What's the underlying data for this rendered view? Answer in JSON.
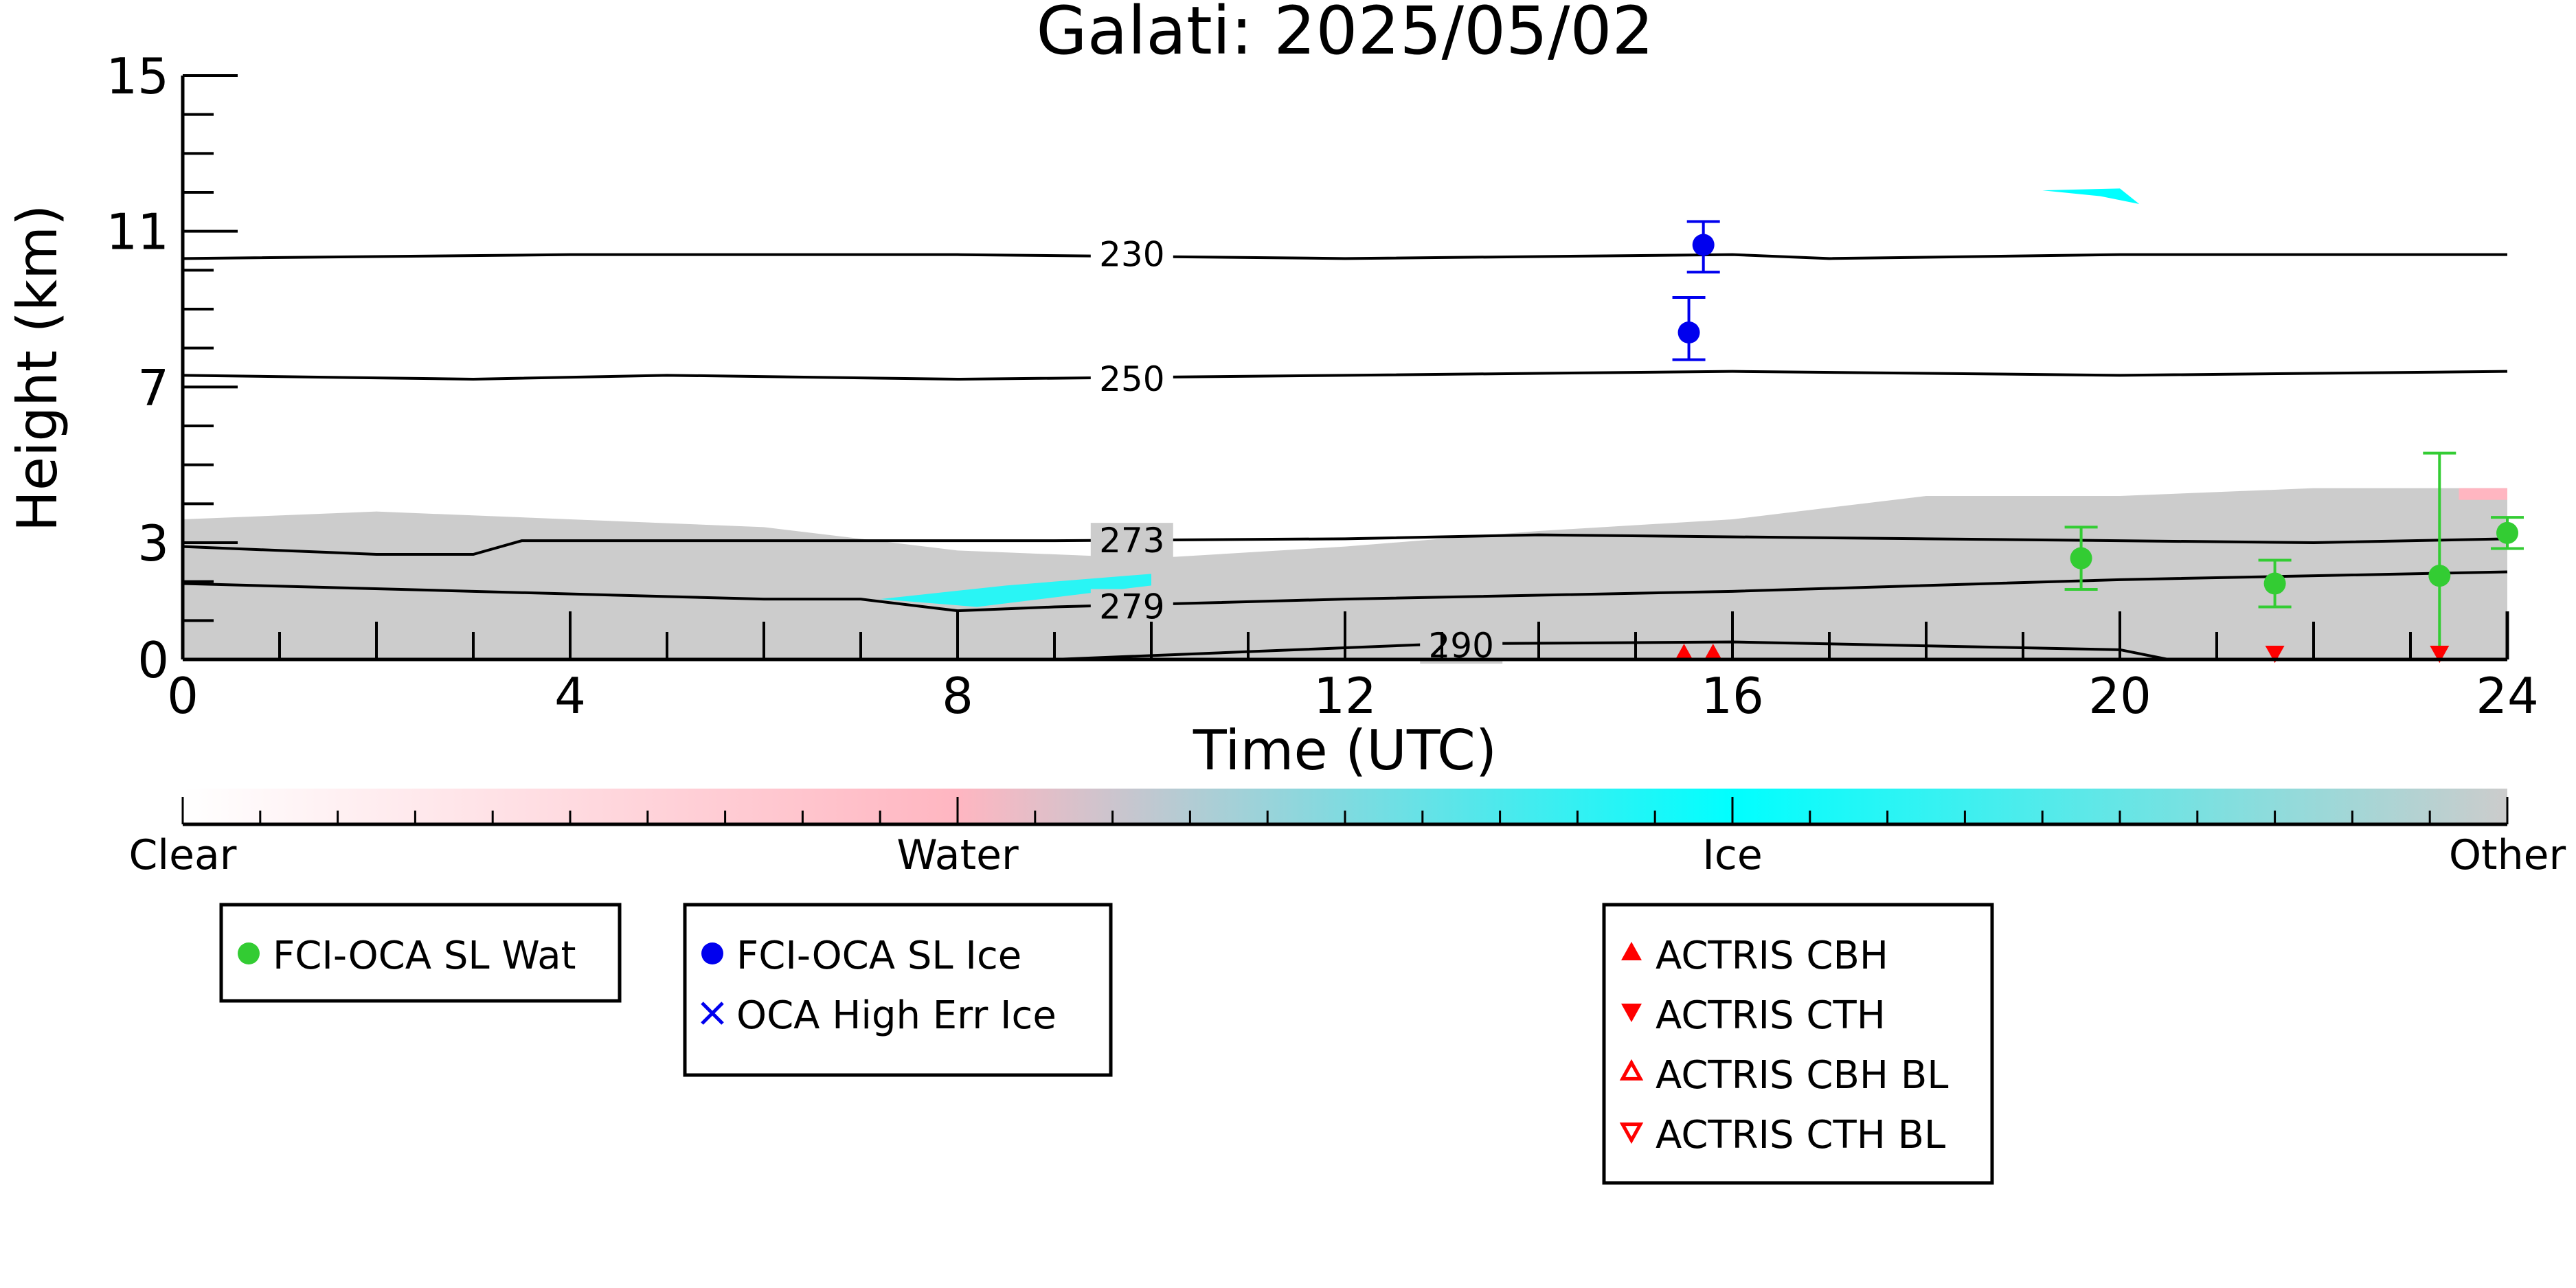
{
  "chart_data": {
    "type": "scatter",
    "title": "Galati: 2025/05/02",
    "xlabel": "Time (UTC)",
    "ylabel": "Height (km)",
    "xlim": [
      0,
      24
    ],
    "ylim": [
      0,
      15
    ],
    "x_ticks": [
      0,
      4,
      8,
      12,
      16,
      20,
      24
    ],
    "y_ticks": [
      0,
      3,
      7,
      11,
      15
    ],
    "grid": false,
    "background_field": {
      "description_colors": {
        "Clear": "#ffffff",
        "Water": "#ffb6c1",
        "Ice": "#00ffff",
        "Other": "#cccccc"
      },
      "other_top_km": [
        [
          0,
          3.6
        ],
        [
          2,
          3.8
        ],
        [
          4,
          3.6
        ],
        [
          6,
          3.4
        ],
        [
          8,
          2.8
        ],
        [
          10,
          2.6
        ],
        [
          12,
          2.9
        ],
        [
          14,
          3.3
        ],
        [
          16,
          3.6
        ],
        [
          18,
          4.2
        ],
        [
          20,
          4.2
        ],
        [
          22,
          4.4
        ],
        [
          24,
          4.4
        ]
      ]
    },
    "contours": [
      {
        "label": "230",
        "points": [
          [
            0,
            10.3
          ],
          [
            4,
            10.4
          ],
          [
            8,
            10.4
          ],
          [
            12,
            10.3
          ],
          [
            16,
            10.4
          ],
          [
            17,
            10.3
          ],
          [
            20,
            10.4
          ],
          [
            24,
            10.4
          ]
        ]
      },
      {
        "label": "250",
        "points": [
          [
            0,
            7.3
          ],
          [
            3,
            7.2
          ],
          [
            5,
            7.3
          ],
          [
            8,
            7.2
          ],
          [
            12,
            7.3
          ],
          [
            16,
            7.4
          ],
          [
            20,
            7.3
          ],
          [
            24,
            7.4
          ]
        ]
      },
      {
        "label": "273",
        "points": [
          [
            0,
            2.9
          ],
          [
            2,
            2.7
          ],
          [
            3,
            2.7
          ],
          [
            3.5,
            3.05
          ],
          [
            6,
            3.05
          ],
          [
            9,
            3.05
          ],
          [
            12,
            3.1
          ],
          [
            14,
            3.2
          ],
          [
            18,
            3.1
          ],
          [
            22,
            3.0
          ],
          [
            24,
            3.1
          ]
        ]
      },
      {
        "label": "279",
        "points": [
          [
            0,
            1.95
          ],
          [
            3,
            1.75
          ],
          [
            6,
            1.55
          ],
          [
            7,
            1.55
          ],
          [
            8,
            1.25
          ],
          [
            9,
            1.35
          ],
          [
            12,
            1.55
          ],
          [
            16,
            1.75
          ],
          [
            20,
            2.05
          ],
          [
            24,
            2.25
          ]
        ]
      },
      {
        "label": "290",
        "points": [
          [
            9,
            0.0
          ],
          [
            11,
            0.2
          ],
          [
            13,
            0.4
          ],
          [
            16,
            0.45
          ],
          [
            20,
            0.25
          ],
          [
            20.5,
            0.0
          ]
        ]
      }
    ],
    "series": [
      {
        "name": "FCI-OCA SL Wat",
        "marker": "circle",
        "color": "#33cc33",
        "points": [
          {
            "x": 19.6,
            "y": 2.6,
            "lo": 1.8,
            "hi": 3.4
          },
          {
            "x": 21.6,
            "y": 1.95,
            "lo": 1.35,
            "hi": 2.55
          },
          {
            "x": 23.3,
            "y": 2.15,
            "lo": 0,
            "hi": 5.3
          },
          {
            "x": 24.0,
            "y": 3.25,
            "lo": 2.85,
            "hi": 3.65
          }
        ]
      },
      {
        "name": "FCI-OCA SL Ice",
        "marker": "circle",
        "color": "#0000ee",
        "points": [
          {
            "x": 15.7,
            "y": 10.65,
            "lo": 9.95,
            "hi": 11.25
          },
          {
            "x": 15.55,
            "y": 8.4,
            "lo": 7.7,
            "hi": 9.3
          }
        ]
      },
      {
        "name": "OCA High Err Ice",
        "marker": "x",
        "color": "#0000ee",
        "points": []
      },
      {
        "name": "ACTRIS CBH",
        "marker": "triangle-up",
        "color": "#ff0000",
        "points": [
          {
            "x": 15.5,
            "y": 0.05
          },
          {
            "x": 15.8,
            "y": 0.05
          }
        ]
      },
      {
        "name": "ACTRIS CTH",
        "marker": "triangle-down",
        "color": "#ff0000",
        "points": [
          {
            "x": 21.6,
            "y": 0.05
          },
          {
            "x": 23.3,
            "y": 0.05
          }
        ]
      },
      {
        "name": "ACTRIS CBH BL",
        "marker": "triangle-up-open",
        "color": "#ff0000",
        "points": []
      },
      {
        "name": "ACTRIS CTH BL",
        "marker": "triangle-down-open",
        "color": "#ff0000",
        "points": []
      }
    ],
    "colorbar": {
      "labels": [
        "Clear",
        "Water",
        "Ice",
        "Other"
      ],
      "colors": [
        "#ffffff",
        "#ffb6c1",
        "#00ffff",
        "#cccccc"
      ]
    },
    "legends": [
      {
        "entries": [
          "FCI-OCA SL Wat"
        ]
      },
      {
        "entries": [
          "FCI-OCA SL Ice",
          "OCA High Err Ice"
        ]
      },
      {
        "entries": [
          "ACTRIS CBH",
          "ACTRIS CTH",
          "ACTRIS CBH BL",
          "ACTRIS CTH BL"
        ]
      }
    ]
  }
}
